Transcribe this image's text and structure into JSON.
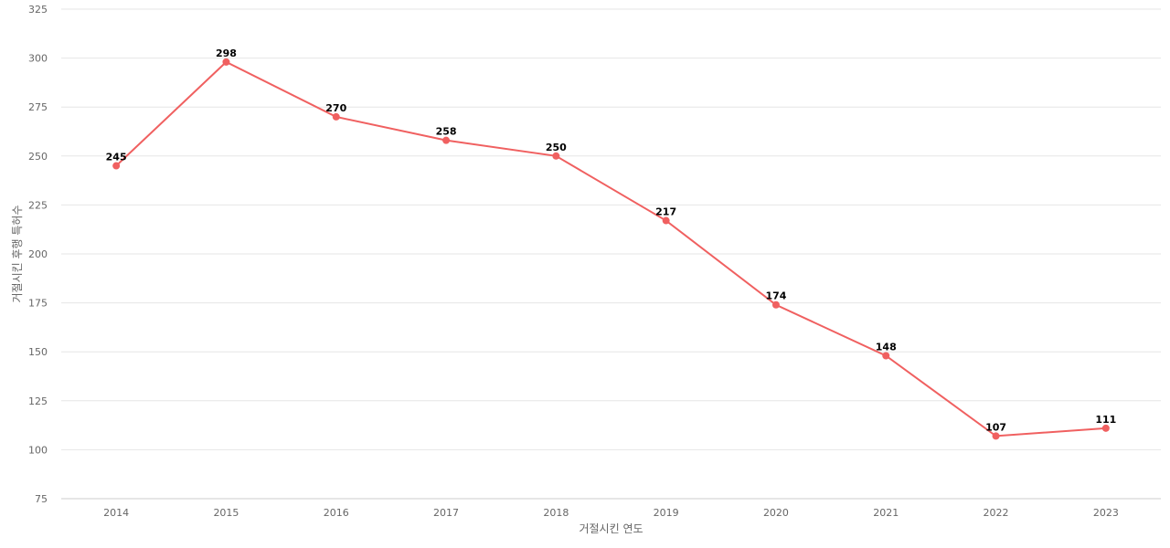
{
  "chart_data": {
    "type": "line",
    "title": "",
    "xlabel": "거절시킨 연도",
    "ylabel": "거절시킨 후행 특허수",
    "categories": [
      "2014",
      "2015",
      "2016",
      "2017",
      "2018",
      "2019",
      "2020",
      "2021",
      "2022",
      "2023"
    ],
    "series": [
      {
        "values": [
          245,
          298,
          270,
          258,
          250,
          217,
          174,
          148,
          107,
          111
        ],
        "color": "#f06060"
      }
    ],
    "ylim": [
      75,
      325
    ],
    "yticks": [
      75,
      100,
      125,
      150,
      175,
      200,
      225,
      250,
      275,
      300,
      325
    ],
    "grid": true,
    "legend": "none",
    "data_labels": true
  }
}
